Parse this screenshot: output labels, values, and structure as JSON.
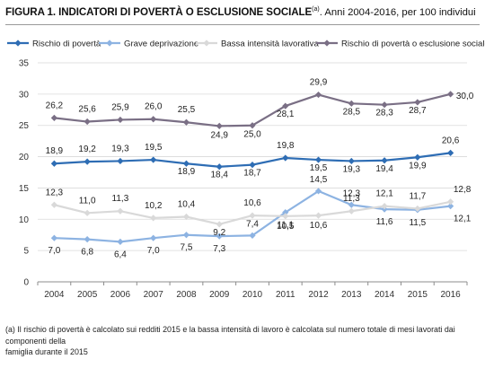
{
  "figure": {
    "title_bold": "FIGURA 1. INDICATORI DI POVERTÀ O ESCLUSIONE SOCIALE",
    "title_sup": "(a)",
    "title_rest": ". Anni 2004-2016, per 100 individui",
    "footnote_line1": "(a) Il rischio di povertà è calcolato sui redditi 2015 e la bassa intensità di lavoro è calcolata sul numero totale di mesi lavorati dai componenti della",
    "footnote_line2": "famiglia durante il 2015"
  },
  "chart_data": {
    "type": "line",
    "title": "INDICATORI DI POVERTÀ O ESCLUSIONE SOCIALE",
    "xlabel": "",
    "ylabel": "",
    "categories": [
      "2004",
      "2005",
      "2006",
      "2007",
      "2008",
      "2009",
      "2010",
      "2011",
      "2012",
      "2013",
      "2014",
      "2015",
      "2016"
    ],
    "ylim": [
      0,
      35
    ],
    "yticks": [
      0,
      5,
      10,
      15,
      20,
      25,
      30,
      35
    ],
    "grid": true,
    "legend_position": "top",
    "series": [
      {
        "name": "Rischio di povertà",
        "color": "#2e6db4",
        "values": [
          18.9,
          19.2,
          19.3,
          19.5,
          18.9,
          18.4,
          18.7,
          19.8,
          19.5,
          19.3,
          19.4,
          19.9,
          20.6
        ],
        "labels": [
          "18,9",
          "19,2",
          "19,3",
          "19,5",
          "18,9",
          "18,4",
          "18,7",
          "19,8",
          "19,5",
          "19,3",
          "19,4",
          "19,9",
          "20,6"
        ]
      },
      {
        "name": "Grave deprivazione",
        "color": "#8db3e2",
        "values": [
          7.0,
          6.8,
          6.4,
          7.0,
          7.5,
          7.3,
          7.4,
          11.1,
          14.5,
          12.3,
          11.6,
          11.5,
          12.1
        ],
        "labels": [
          "7,0",
          "6,8",
          "6,4",
          "7,0",
          "7,5",
          "7,3",
          "7,4",
          "11,1",
          "14,5",
          "12,3",
          "11,6",
          "11,5",
          "12,1"
        ]
      },
      {
        "name": "Bassa intensità lavorativa",
        "color": "#d9d9d9",
        "values": [
          12.3,
          11.0,
          11.3,
          10.2,
          10.4,
          9.2,
          10.6,
          10.5,
          10.6,
          11.3,
          12.1,
          11.7,
          12.8
        ],
        "labels": [
          "12,3",
          "11,0",
          "11,3",
          "10,2",
          "10,4",
          "9,2",
          "10,6",
          "10,5",
          "10,6",
          "11,3",
          "12,1",
          "11,7",
          "12,8"
        ]
      },
      {
        "name": "Rischio di povertà o esclusione sociale",
        "color": "#7a6f85",
        "values": [
          26.2,
          25.6,
          25.9,
          26.0,
          25.5,
          24.9,
          25.0,
          28.1,
          29.9,
          28.5,
          28.3,
          28.7,
          30.0
        ],
        "labels": [
          "26,2",
          "25,6",
          "25,9",
          "26,0",
          "25,5",
          "24,9",
          "25,0",
          "28,1",
          "29,9",
          "28,5",
          "28,3",
          "28,7",
          "30,0"
        ]
      }
    ]
  }
}
